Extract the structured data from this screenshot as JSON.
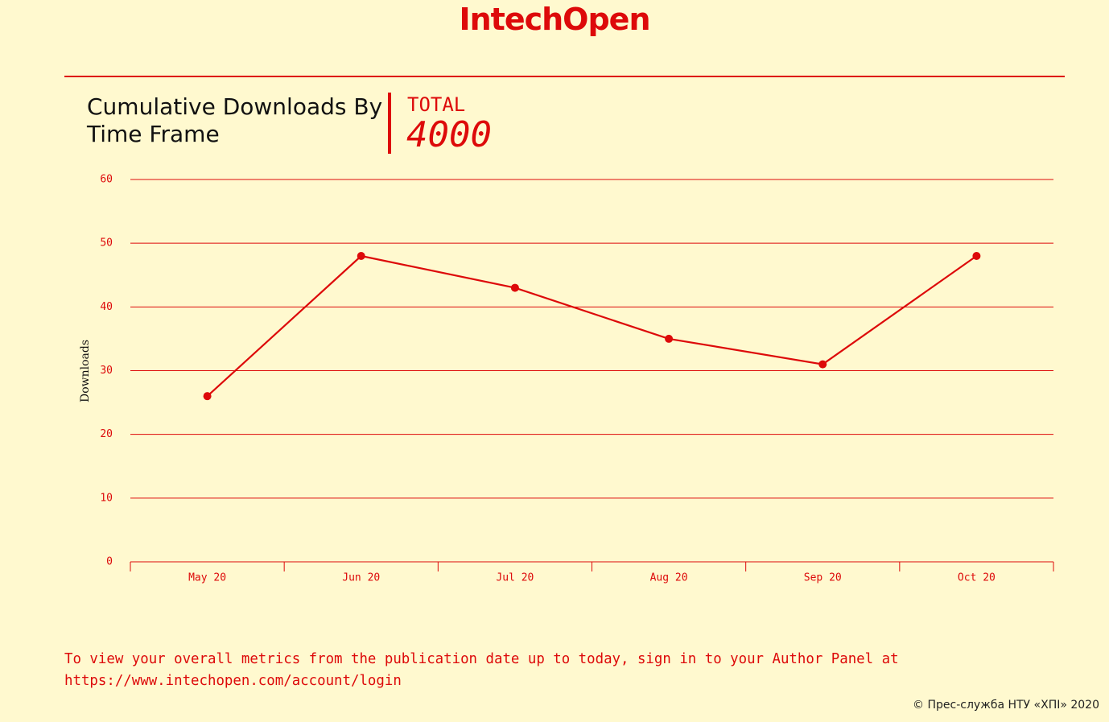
{
  "header": {
    "logo": "IntechOpen"
  },
  "chart_data": {
    "type": "line",
    "title": "Cumulative Downloads By Time Frame",
    "total_label": "TOTAL",
    "total": 4000,
    "y_label": "Downloads",
    "categories": [
      "May 20",
      "Jun 20",
      "Jul 20",
      "Aug 20",
      "Sep 20",
      "Oct 20"
    ],
    "values": [
      26,
      48,
      43,
      35,
      31,
      48
    ],
    "color": "#dd0a0a",
    "ylim": [
      0,
      60
    ],
    "yticks": [
      0,
      10,
      20,
      30,
      40,
      50,
      60
    ],
    "grid": true
  },
  "footer": {
    "note": "To view your overall metrics from the publication date up to today, sign in to your Author Panel at https://www.intechopen.com/account/login",
    "credit": "© Прес-служба НТУ «ХПІ» 2020"
  }
}
